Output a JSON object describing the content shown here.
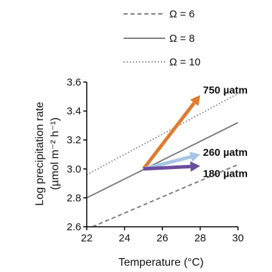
{
  "chart_data": {
    "type": "line",
    "xlabel": "Temperature (°C)",
    "ylabel_line1": "Log precipitation rate",
    "ylabel_line2": "(µmol m⁻² h⁻¹)",
    "xlim": [
      22,
      30
    ],
    "ylim": [
      2.6,
      3.6
    ],
    "xticks": [
      22,
      24,
      26,
      28,
      30
    ],
    "yticks": [
      2.6,
      2.8,
      3.0,
      3.2,
      3.4,
      3.6
    ],
    "xtick_labels": [
      "22",
      "24",
      "26",
      "28",
      "30"
    ],
    "ytick_labels": [
      "2.6",
      "2.8",
      "3.0",
      "3.2",
      "3.4",
      "3.6"
    ],
    "grid": false,
    "series": [
      {
        "name": "Ω = 6",
        "style": "dashed",
        "color": "#7f7f7f",
        "x": [
          22.3,
          30
        ],
        "y": [
          2.6,
          3.03
        ]
      },
      {
        "name": "Ω = 8",
        "style": "solid",
        "color": "#7f7f7f",
        "x": [
          22,
          30
        ],
        "y": [
          2.8,
          3.32
        ]
      },
      {
        "name": "Ω = 10",
        "style": "dotted",
        "color": "#7f7f7f",
        "x": [
          22,
          30
        ],
        "y": [
          2.96,
          3.52
        ]
      }
    ],
    "arrows": [
      {
        "label": "750 µatm",
        "color": "#e07b2e",
        "x0": 25,
        "y0": 3.0,
        "x1": 28,
        "y1": 3.51
      },
      {
        "label": "260 µatm",
        "color": "#a8c4e4",
        "x0": 25,
        "y0": 3.0,
        "x1": 28,
        "y1": 3.1
      },
      {
        "label": "180 µatm",
        "color": "#6a4d9c",
        "x0": 25,
        "y0": 3.0,
        "x1": 28,
        "y1": 3.02
      }
    ],
    "legend_position": "top-right"
  }
}
